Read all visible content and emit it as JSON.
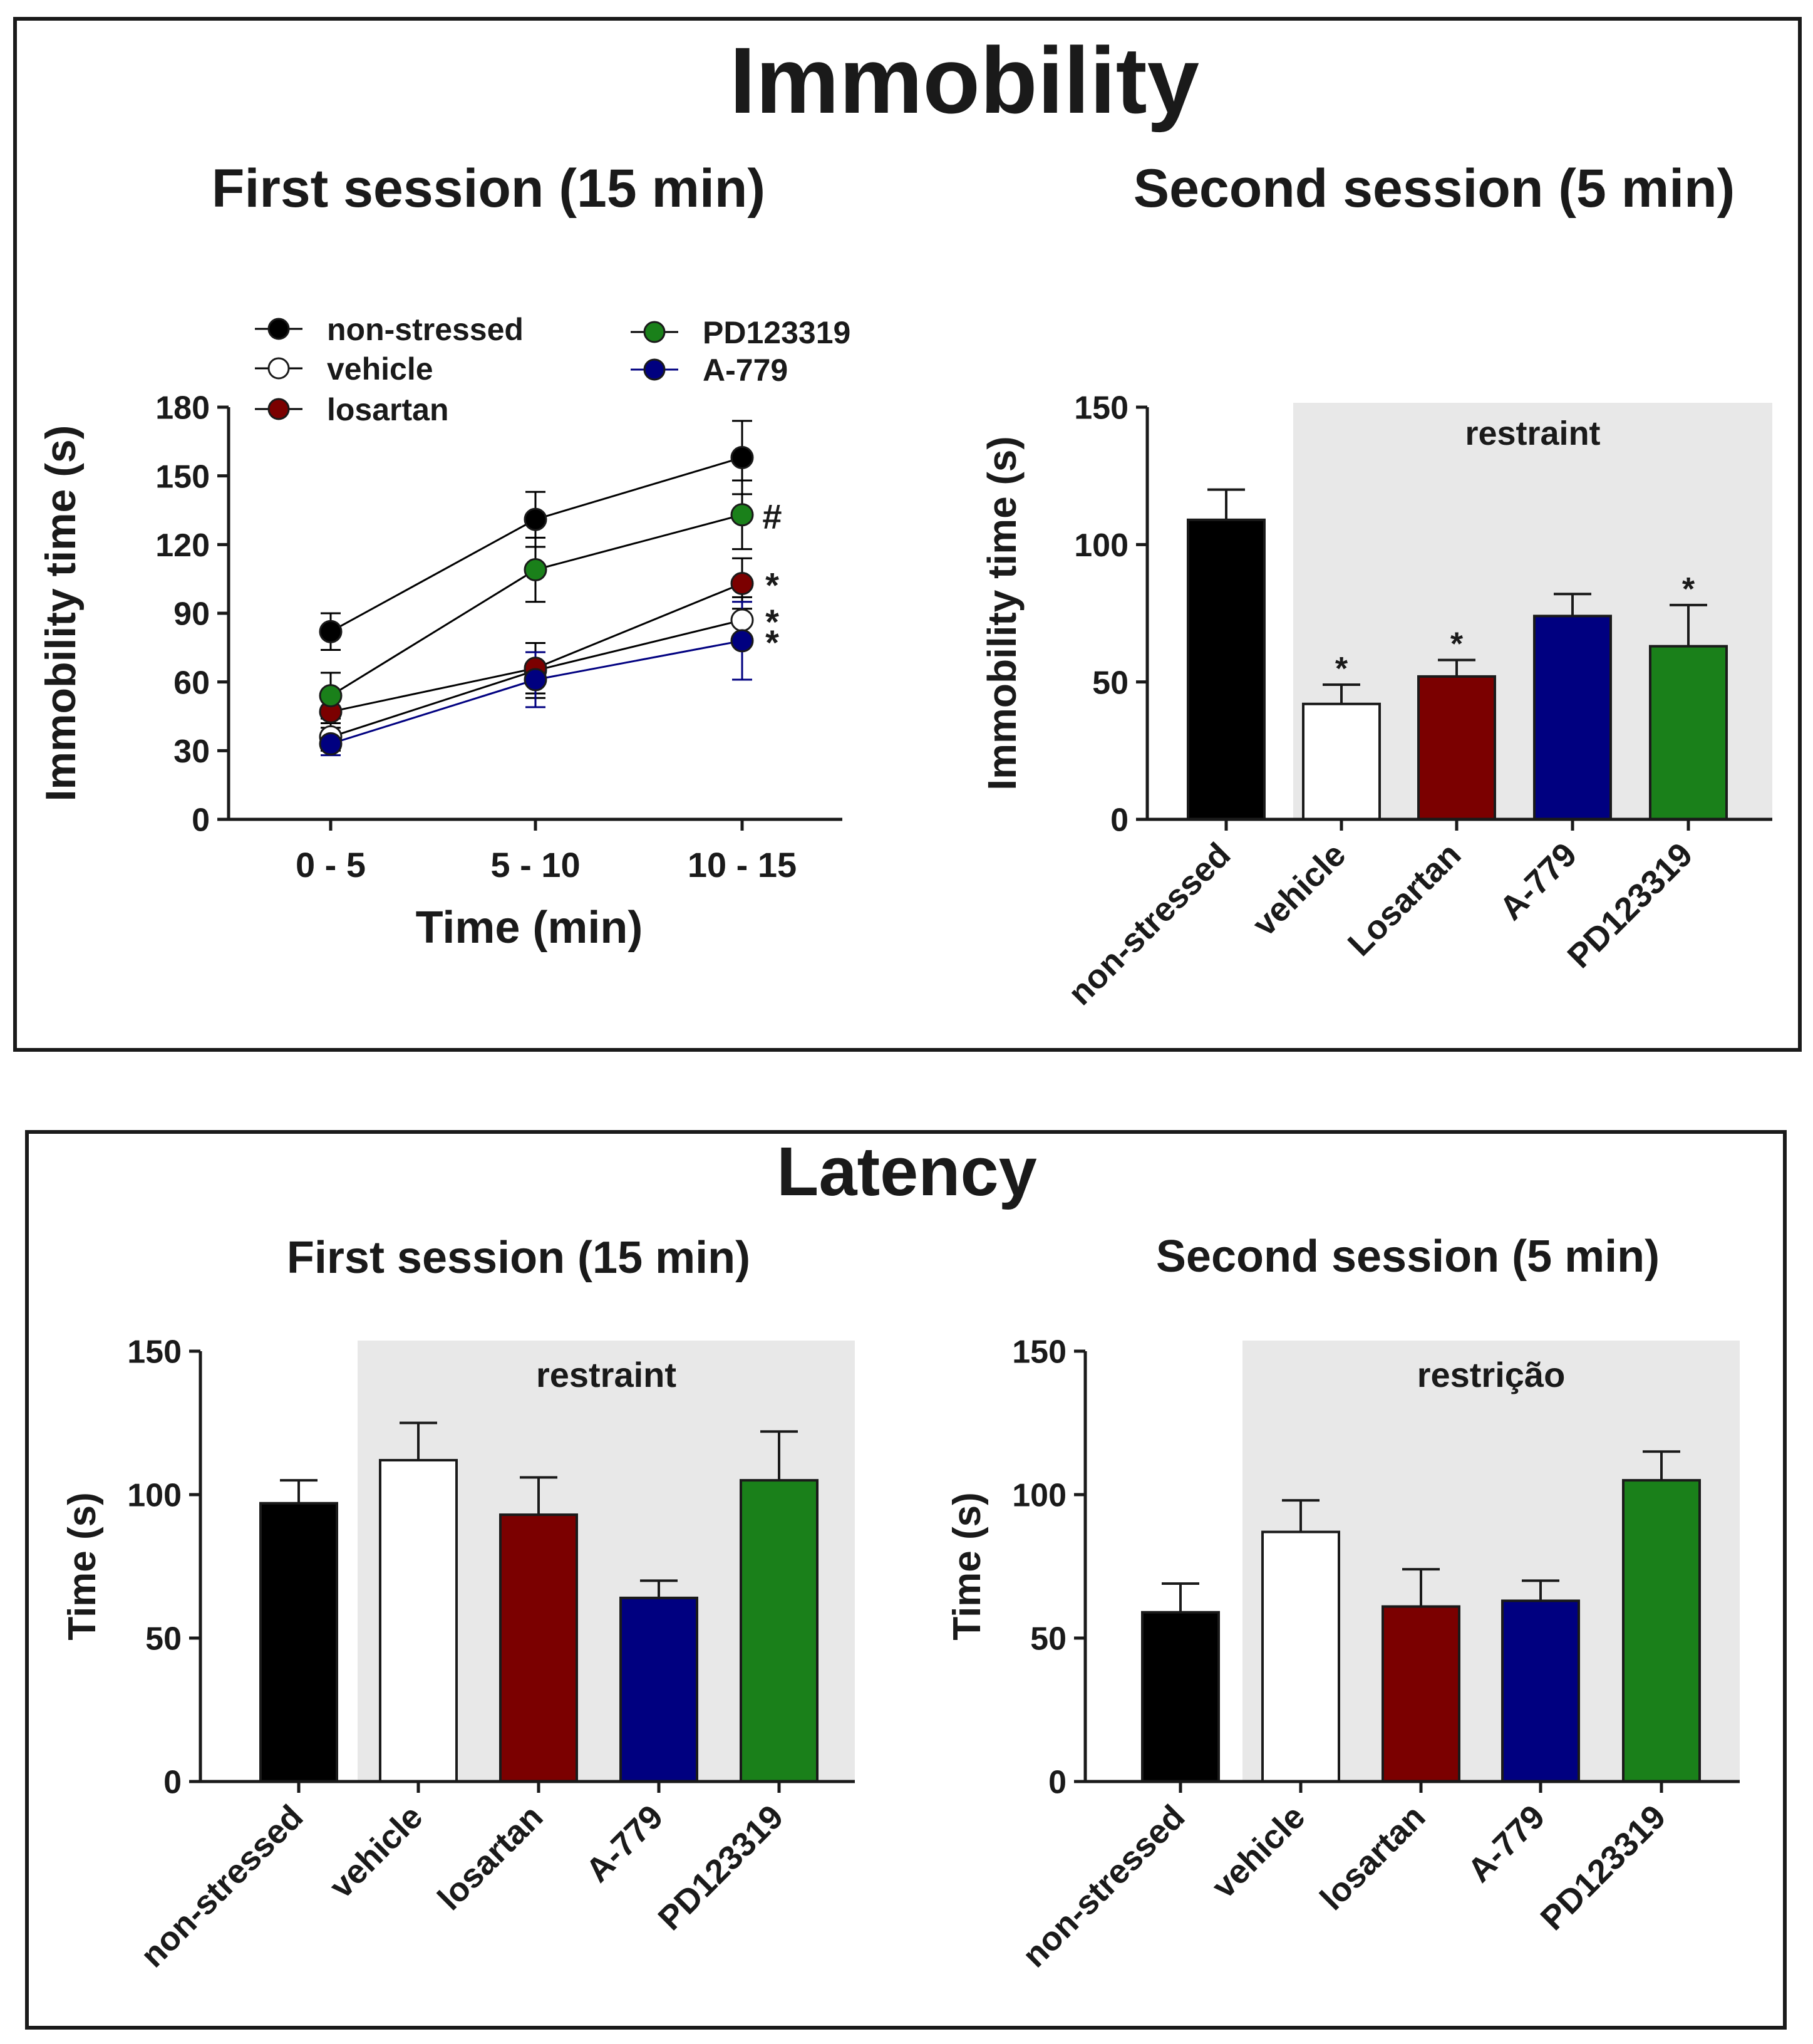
{
  "panels": [
    {
      "title": "Immobility",
      "charts": [
        {
          "id": "imm1",
          "subtitle": "First session (15 min)"
        },
        {
          "id": "imm2",
          "subtitle": "Second session (5 min)"
        }
      ]
    },
    {
      "title": "Latency",
      "charts": [
        {
          "id": "lat1",
          "subtitle": "First session (15 min)"
        },
        {
          "id": "lat2",
          "subtitle": "Second session (5 min)"
        }
      ]
    }
  ],
  "colors": {
    "non-stressed": "#000000",
    "vehicle": "#ffffff",
    "losartan": "#7b0000",
    "A-779": "#000080",
    "PD123319": "#1a801a",
    "shade": "#e8e8e8"
  },
  "chart_data": [
    {
      "id": "imm1",
      "type": "line",
      "title": "First session (15 min)",
      "xlabel": "Time (min)",
      "ylabel": "Immobility time (s)",
      "categories": [
        "0 - 5",
        "5 - 10",
        "10 - 15"
      ],
      "ylim": [
        0,
        180
      ],
      "yticks": [
        0,
        30,
        60,
        90,
        120,
        150,
        180
      ],
      "legend_position": "top",
      "series": [
        {
          "name": "non-stressed",
          "color": "#000000",
          "fill": "#000000",
          "values": [
            82,
            131,
            158
          ],
          "errors": [
            8,
            12,
            16
          ],
          "mark": ""
        },
        {
          "name": "vehicle",
          "color": "#000000",
          "fill": "#ffffff",
          "values": [
            36,
            65,
            87
          ],
          "errors": [
            6,
            12,
            10
          ],
          "mark": "*"
        },
        {
          "name": "losartan",
          "color": "#000000",
          "fill": "#7b0000",
          "values": [
            47,
            66,
            103
          ],
          "errors": [
            7,
            11,
            11
          ],
          "mark": "*"
        },
        {
          "name": "PD123319",
          "color": "#000000",
          "fill": "#1a801a",
          "values": [
            54,
            109,
            133
          ],
          "errors": [
            10,
            14,
            15
          ],
          "mark": "#"
        },
        {
          "name": "A-779",
          "color": "#000080",
          "fill": "#000080",
          "values": [
            33,
            61,
            78
          ],
          "errors": [
            5,
            12,
            17
          ],
          "mark": "*"
        }
      ]
    },
    {
      "id": "imm2",
      "type": "bar",
      "title": "Second session (5 min)",
      "ylabel": "Immobility time (s)",
      "categories": [
        "non-stressed",
        "vehicle",
        "Losartan",
        "A-779",
        "PD123319"
      ],
      "values": [
        109,
        42,
        52,
        74,
        63
      ],
      "errors": [
        11,
        7,
        6,
        8,
        15
      ],
      "marks": [
        "",
        "*",
        "*",
        "",
        "*"
      ],
      "fills": [
        "#000000",
        "#ffffff",
        "#7b0000",
        "#000080",
        "#1a801a"
      ],
      "ylim": [
        0,
        150
      ],
      "yticks": [
        0,
        50,
        100,
        150
      ],
      "shade_label": "restraint",
      "shade_from_index": 1
    },
    {
      "id": "lat1",
      "type": "bar",
      "title": "First session (15 min)",
      "ylabel": "Time (s)",
      "categories": [
        "non-stressed",
        "vehicle",
        "losartan",
        "A-779",
        "PD123319"
      ],
      "values": [
        97,
        112,
        93,
        64,
        105
      ],
      "errors": [
        8,
        13,
        13,
        6,
        17
      ],
      "marks": [
        "",
        "",
        "",
        "",
        ""
      ],
      "fills": [
        "#000000",
        "#ffffff",
        "#7b0000",
        "#000080",
        "#1a801a"
      ],
      "ylim": [
        0,
        150
      ],
      "yticks": [
        0,
        50,
        100,
        150
      ],
      "shade_label": "restraint",
      "shade_from_index": 1
    },
    {
      "id": "lat2",
      "type": "bar",
      "title": "Second session (5 min)",
      "ylabel": "Time (s)",
      "categories": [
        "non-stressed",
        "vehicle",
        "losartan",
        "A-779",
        "PD123319"
      ],
      "values": [
        59,
        87,
        61,
        63,
        105
      ],
      "errors": [
        10,
        11,
        13,
        7,
        10
      ],
      "marks": [
        "",
        "",
        "",
        "",
        ""
      ],
      "fills": [
        "#000000",
        "#ffffff",
        "#7b0000",
        "#000080",
        "#1a801a"
      ],
      "ylim": [
        0,
        150
      ],
      "yticks": [
        0,
        50,
        100,
        150
      ],
      "shade_label": "restrição",
      "shade_from_index": 1
    }
  ]
}
